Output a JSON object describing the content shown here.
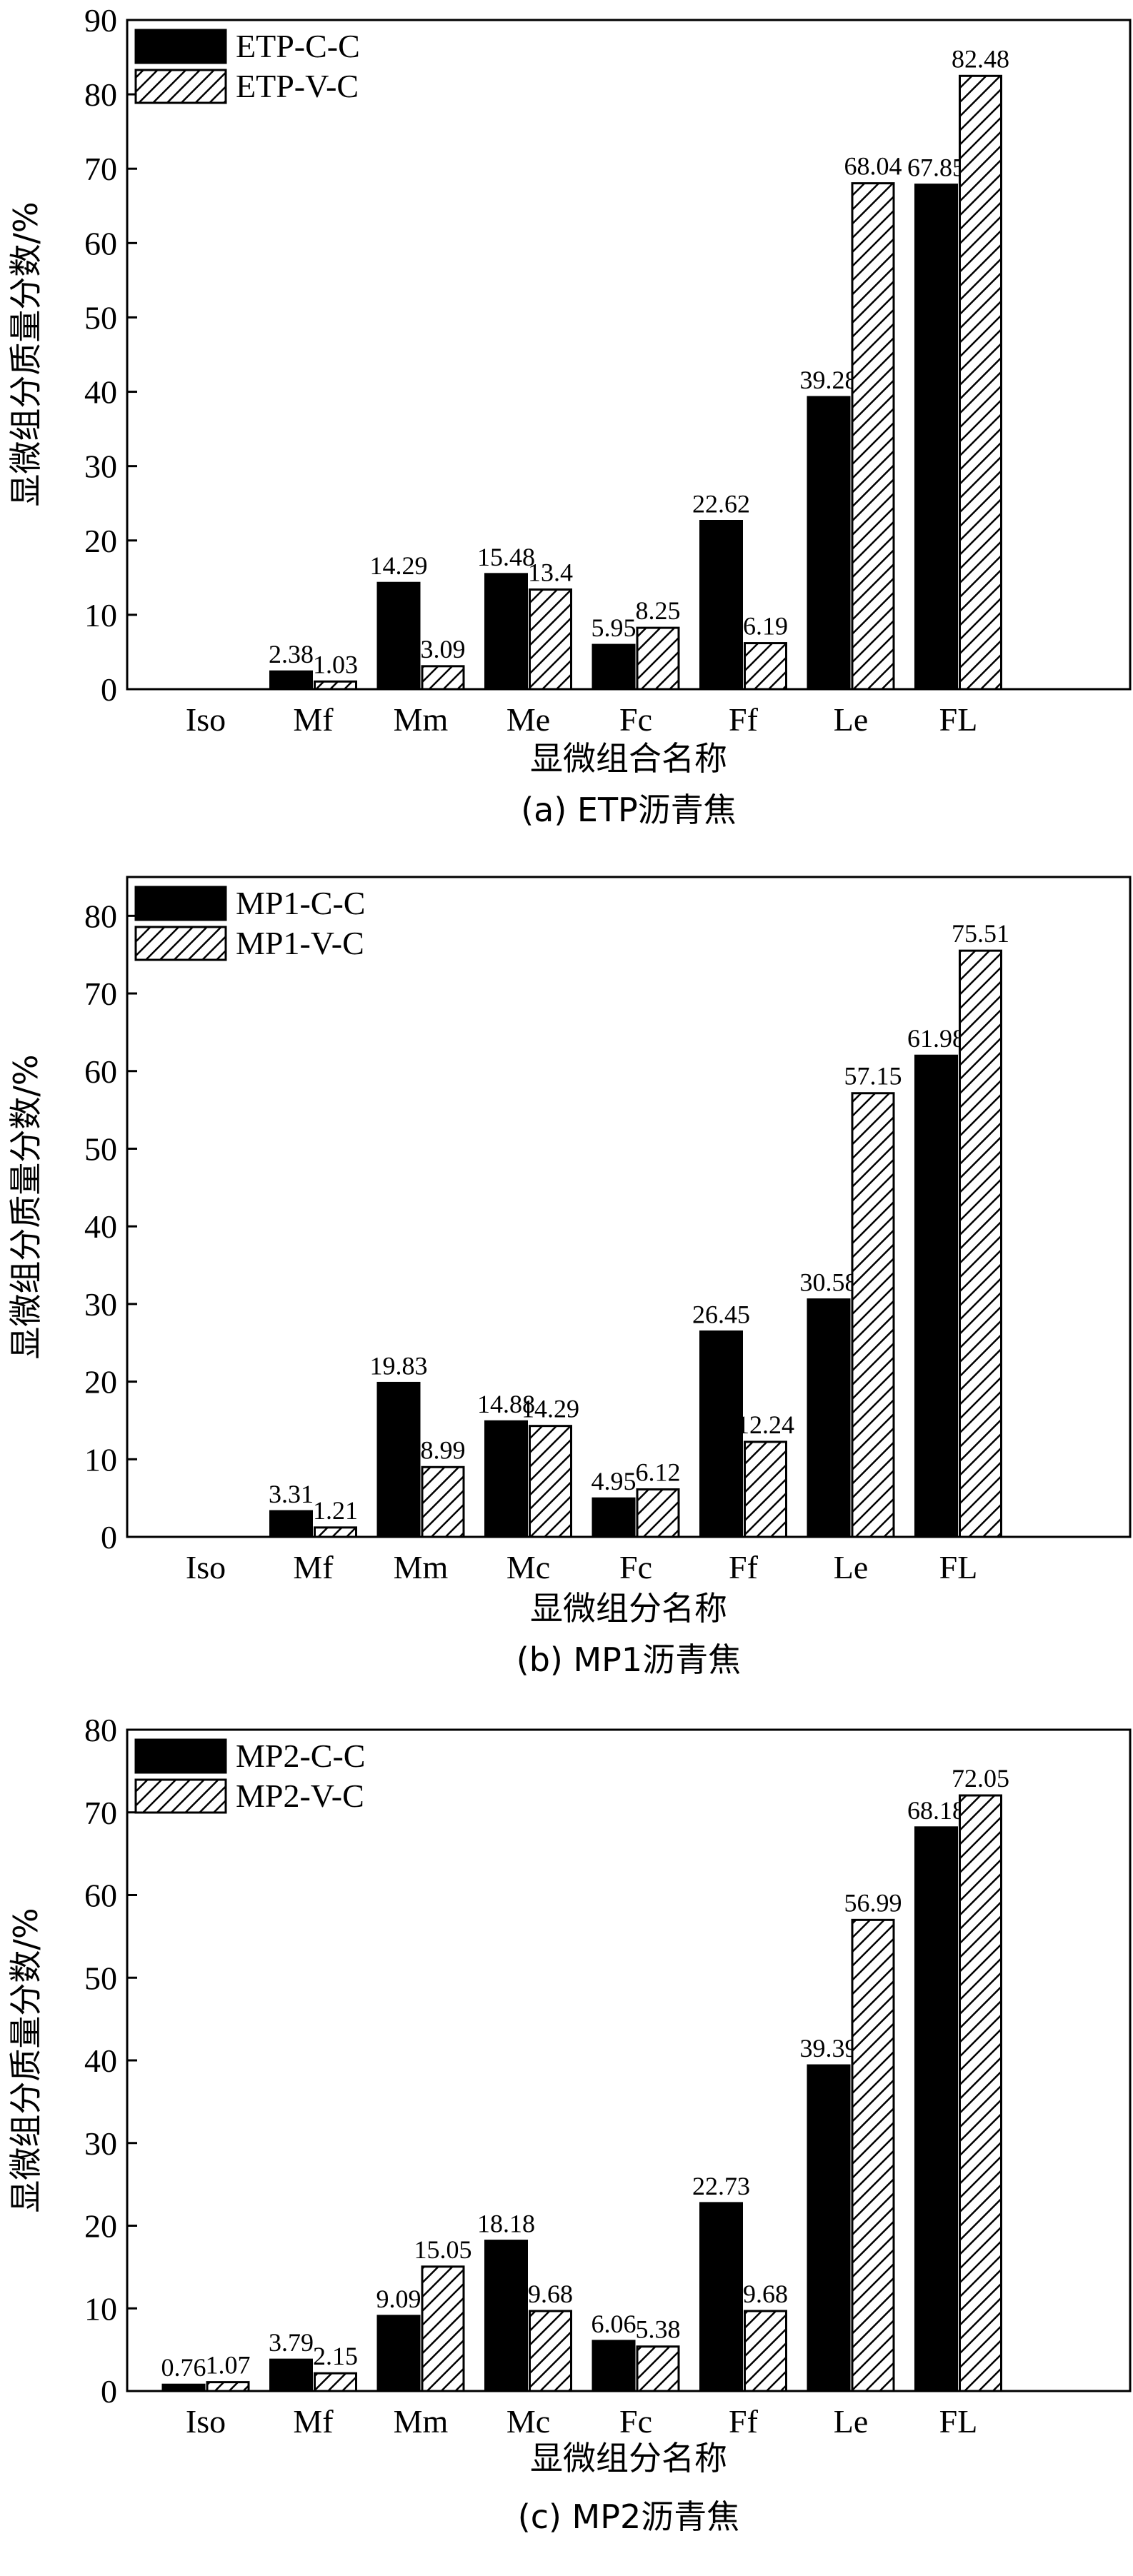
{
  "chart_data": [
    {
      "type": "bar",
      "categories": [
        "Iso",
        "Mf",
        "Mm",
        "Me",
        "Fc",
        "Ff",
        "Le",
        "FL"
      ],
      "series": [
        {
          "name": "ETP-C-C",
          "values": [
            null,
            2.38,
            14.29,
            15.48,
            5.95,
            22.62,
            39.28,
            67.85
          ],
          "labels": [
            "",
            "2.38",
            "14.29",
            "15.48",
            "5.95",
            "22.62",
            "39.28",
            "67.85"
          ],
          "pattern": "solid"
        },
        {
          "name": "ETP-V-C",
          "values": [
            null,
            1.03,
            3.09,
            13.4,
            8.25,
            6.19,
            68.04,
            82.48
          ],
          "labels": [
            "",
            "1.03",
            "3.09",
            "13.4",
            "8.25",
            "6.19",
            "68.04",
            "82.48"
          ],
          "pattern": "hatch"
        }
      ],
      "xlabel": "显微组合名称",
      "ylabel": "显微组分质量分数/%",
      "ylim": [
        0,
        90
      ],
      "yticks": [
        0,
        10,
        20,
        30,
        40,
        50,
        60,
        70,
        80,
        90
      ],
      "caption": "(a) ETP沥青焦",
      "legend": "top-left",
      "grid": false
    },
    {
      "type": "bar",
      "categories": [
        "Iso",
        "Mf",
        "Mm",
        "Mc",
        "Fc",
        "Ff",
        "Le",
        "FL"
      ],
      "series": [
        {
          "name": "MP1-C-C",
          "values": [
            null,
            3.31,
            19.83,
            14.88,
            4.95,
            26.45,
            30.58,
            61.98
          ],
          "labels": [
            "",
            "3.31",
            "19.83",
            "14.88",
            "4.95",
            "26.45",
            "30.58",
            "61.98"
          ],
          "pattern": "solid"
        },
        {
          "name": "MP1-V-C",
          "values": [
            null,
            1.21,
            8.99,
            14.29,
            6.12,
            12.24,
            57.15,
            75.51
          ],
          "labels": [
            "",
            "1.21",
            "8.99",
            "14.29",
            "6.12",
            "12.24",
            "57.15",
            "75.51"
          ],
          "pattern": "hatch"
        }
      ],
      "xlabel": "显微组分名称",
      "ylabel": "显微组分质量分数/%",
      "ylim": [
        0,
        85
      ],
      "yticks": [
        0,
        10,
        20,
        30,
        40,
        50,
        60,
        70,
        80
      ],
      "caption": "(b) MP1沥青焦",
      "legend": "top-left",
      "grid": false
    },
    {
      "type": "bar",
      "categories": [
        "Iso",
        "Mf",
        "Mm",
        "Mc",
        "Fc",
        "Ff",
        "Le",
        "FL"
      ],
      "series": [
        {
          "name": "MP2-C-C",
          "values": [
            0.76,
            3.79,
            9.09,
            18.18,
            6.06,
            22.73,
            39.39,
            68.18
          ],
          "labels": [
            "0.76",
            "3.79",
            "9.09",
            "18.18",
            "6.06",
            "22.73",
            "39.39",
            "68.18"
          ],
          "pattern": "solid"
        },
        {
          "name": "MP2-V-C",
          "values": [
            1.07,
            2.15,
            15.05,
            9.68,
            5.38,
            9.68,
            56.99,
            72.05
          ],
          "labels": [
            "1.07",
            "2.15",
            "15.05",
            "9.68",
            "5.38",
            "9.68",
            "56.99",
            "72.05"
          ],
          "pattern": "hatch"
        }
      ],
      "xlabel": "显微组分名称",
      "ylabel": "显微组分质量分数/%",
      "ylim": [
        0,
        80
      ],
      "yticks": [
        0,
        10,
        20,
        30,
        40,
        50,
        60,
        70,
        80
      ],
      "caption": "(c) MP2沥青焦",
      "legend": "top-left",
      "grid": false
    }
  ]
}
